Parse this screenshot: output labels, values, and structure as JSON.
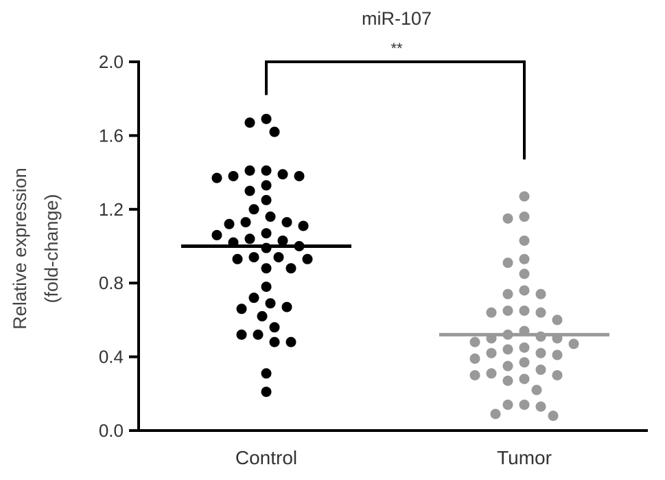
{
  "chart_data": {
    "type": "scatter",
    "title": "miR-107",
    "ylabel_line1": "Relative expression",
    "ylabel_line2": "(fold-change)",
    "ylim": [
      0,
      2.0
    ],
    "yticks": [
      "0.0",
      "0.4",
      "0.8",
      "1.2",
      "1.6",
      "2.0"
    ],
    "categories": [
      "Control",
      "Tumor"
    ],
    "significance": "**",
    "grid": false,
    "colors": {
      "Control": "#000000",
      "Tumor": "#999999",
      "axis": "#000000"
    },
    "series": [
      {
        "group": "Control",
        "mean": 1.0,
        "values": [
          1.69,
          1.67,
          1.62,
          1.41,
          1.41,
          1.39,
          1.38,
          1.38,
          1.37,
          1.33,
          1.3,
          1.25,
          1.2,
          1.16,
          1.13,
          1.13,
          1.12,
          1.11,
          1.07,
          1.06,
          1.04,
          1.03,
          1.02,
          1.0,
          0.99,
          0.94,
          0.94,
          0.93,
          0.93,
          0.88,
          0.88,
          0.78,
          0.72,
          0.69,
          0.67,
          0.66,
          0.62,
          0.56,
          0.52,
          0.52,
          0.48,
          0.48,
          0.31,
          0.21
        ]
      },
      {
        "group": "Tumor",
        "mean": 0.52,
        "values": [
          1.27,
          1.16,
          1.15,
          1.03,
          0.93,
          0.91,
          0.85,
          0.76,
          0.74,
          0.74,
          0.65,
          0.65,
          0.64,
          0.64,
          0.6,
          0.54,
          0.52,
          0.51,
          0.5,
          0.5,
          0.48,
          0.47,
          0.45,
          0.44,
          0.42,
          0.42,
          0.41,
          0.39,
          0.37,
          0.35,
          0.33,
          0.31,
          0.3,
          0.3,
          0.28,
          0.27,
          0.22,
          0.14,
          0.14,
          0.13,
          0.09,
          0.08
        ]
      }
    ]
  }
}
